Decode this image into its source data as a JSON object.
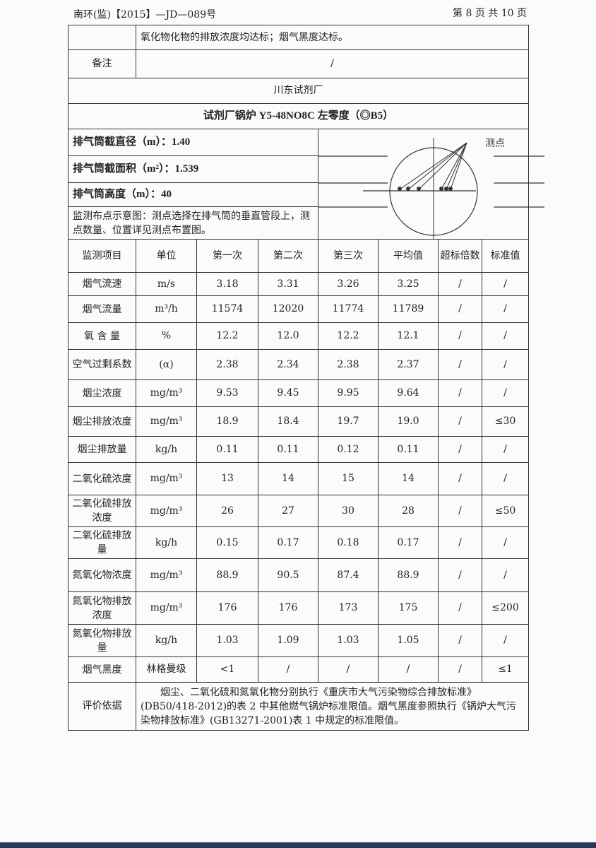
{
  "header": {
    "doc_no": "南环(监)【2015】—JD—089号",
    "page": "第 8 页 共 10 页"
  },
  "top": {
    "conclusion_tail": "氧化物化物的排放浓度均达标；烟气黑度达标。",
    "remark_label": "备注",
    "remark_value": "/",
    "company": "川东试剂厂",
    "source": "试剂厂锅炉 Y5-48NO8C 左零度（◎B5）"
  },
  "stack": {
    "diameter": "排气筒截直径（m）：1.40",
    "area": "排气筒截面积（m²）：1.539",
    "height": "排气筒高度（m）：40",
    "layout_note": "监测布点示意图：测点选择在排气筒的垂直管段上，测点数量、位置详见测点布置图。",
    "diagram_label": "测点"
  },
  "columns": [
    "监测项目",
    "单位",
    "第一次",
    "第二次",
    "第三次",
    "平均值",
    "超标倍数",
    "标准值"
  ],
  "rows": [
    [
      "烟气流速",
      "m/s",
      "3.18",
      "3.31",
      "3.26",
      "3.25",
      "/",
      "/"
    ],
    [
      "烟气流量",
      "m³/h",
      "11574",
      "12020",
      "11774",
      "11789",
      "/",
      "/"
    ],
    [
      "氧 含 量",
      "%",
      "12.2",
      "12.0",
      "12.2",
      "12.1",
      "/",
      "/"
    ],
    [
      "空气过剩系数",
      "(α)",
      "2.38",
      "2.34",
      "2.38",
      "2.37",
      "/",
      "/"
    ],
    [
      "烟尘浓度",
      "mg/m³",
      "9.53",
      "9.45",
      "9.95",
      "9.64",
      "/",
      "/"
    ],
    [
      "烟尘排放浓度",
      "mg/m³",
      "18.9",
      "18.4",
      "19.7",
      "19.0",
      "/",
      "≤30"
    ],
    [
      "烟尘排放量",
      "kg/h",
      "0.11",
      "0.11",
      "0.12",
      "0.11",
      "/",
      "/"
    ],
    [
      "二氧化硫浓度",
      "mg/m³",
      "13",
      "14",
      "15",
      "14",
      "/",
      "/"
    ],
    [
      "二氧化硫排放浓度",
      "mg/m³",
      "26",
      "27",
      "30",
      "28",
      "/",
      "≤50"
    ],
    [
      "二氧化硫排放量",
      "kg/h",
      "0.15",
      "0.17",
      "0.18",
      "0.17",
      "/",
      "/"
    ],
    [
      "氮氧化物浓度",
      "mg/m³",
      "88.9",
      "90.5",
      "87.4",
      "88.9",
      "/",
      "/"
    ],
    [
      "氮氧化物排放浓度",
      "mg/m³",
      "176",
      "176",
      "173",
      "175",
      "/",
      "≤200"
    ],
    [
      "氮氧化物排放量",
      "kg/h",
      "1.03",
      "1.09",
      "1.03",
      "1.05",
      "/",
      "/"
    ],
    [
      "烟气黑度",
      "林格曼级",
      "<1",
      "/",
      "/",
      "/",
      "/",
      "≤1"
    ]
  ],
  "evaluation": {
    "label": "评价依据",
    "text": "烟尘、二氧化硫和氮氧化物分别执行《重庆市大气污染物综合排放标准》(DB50/418-2012)的表 2 中其他燃气锅炉标准限值。烟气黑度参照执行《锅炉大气污染物排放标准》(GB13271-2001)表 1 中规定的标准限值。"
  }
}
